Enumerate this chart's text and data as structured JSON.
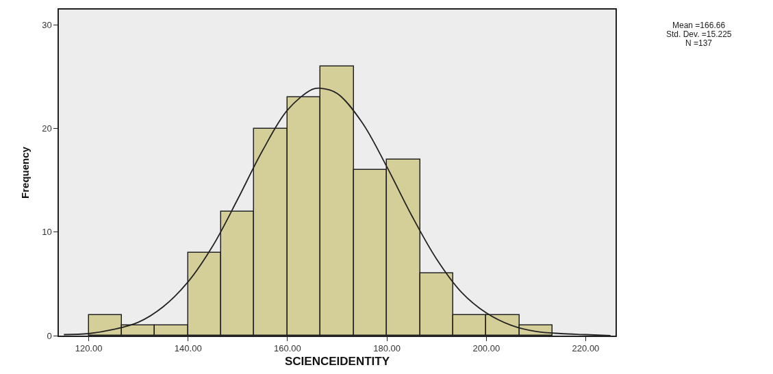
{
  "chart_data": {
    "type": "histogram",
    "xlabel": "SCIENCEIDENTITY",
    "ylabel": "Frequency",
    "bins": [
      120,
      126.67,
      133.33,
      140,
      146.67,
      153.33,
      160,
      166.67,
      173.33,
      180,
      186.67,
      193.33,
      200,
      206.67,
      213.33
    ],
    "values": [
      2,
      1,
      1,
      8,
      12,
      20,
      23,
      26,
      16,
      17,
      6,
      2,
      2,
      1
    ],
    "color": "#d4cf98",
    "series": [
      {
        "type": "line",
        "color": "#222222",
        "x": [
          115,
          120,
          125,
          130,
          135,
          140,
          145,
          150,
          155,
          160,
          165,
          166.66,
          170,
          175,
          180,
          185,
          190,
          195,
          200,
          205,
          210,
          215,
          220,
          225
        ],
        "values": [
          0.1,
          0.2,
          0.6,
          1.3,
          2.8,
          5.2,
          8.7,
          13.2,
          17.9,
          21.8,
          23.8,
          23.9,
          23.4,
          20.6,
          16.3,
          11.6,
          7.4,
          4.2,
          2.2,
          1.0,
          0.4,
          0.2,
          0.1,
          0.0
        ]
      }
    ],
    "xlim": [
      114,
      226
    ],
    "ylim": [
      0,
      31.5
    ],
    "xticks": [
      {
        "value": 120,
        "label": "120.00"
      },
      {
        "value": 140,
        "label": "140.00"
      },
      {
        "value": 160,
        "label": "160.00"
      },
      {
        "value": 180,
        "label": "180.00"
      },
      {
        "value": 200,
        "label": "200.00"
      },
      {
        "value": 220,
        "label": "220.00"
      }
    ],
    "yticks": [
      0,
      10,
      20,
      30
    ],
    "grid": false,
    "annotations": [
      "Mean =166.66",
      "Std. Dev. =15.225",
      "N =137"
    ]
  }
}
